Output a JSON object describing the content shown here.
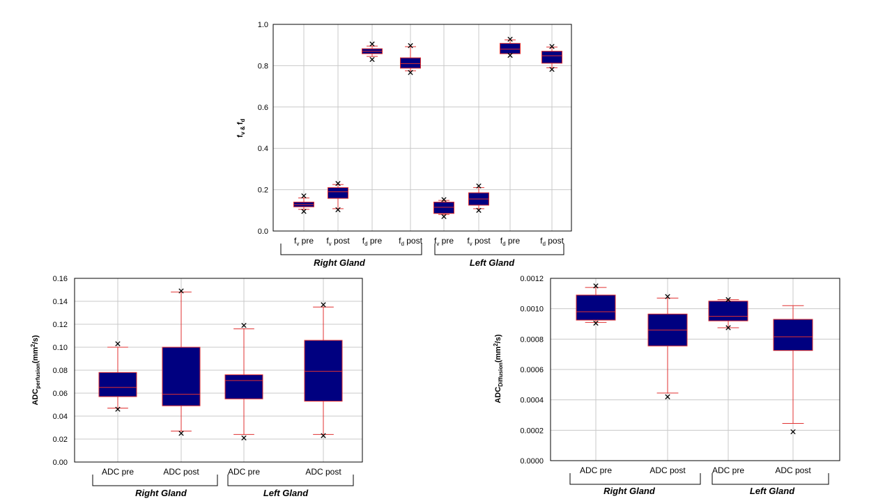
{
  "colors": {
    "box_fill": "#000080",
    "box_edge": "#e03030",
    "whisker": "#e03030",
    "grid": "#c8c8c8",
    "outlier": "#000000"
  },
  "chart_data": [
    {
      "type": "box",
      "ylabel": {
        "main": "f",
        "sub1": "v & ",
        "main2": "f",
        "sub2": "d"
      },
      "ylim": [
        0,
        1
      ],
      "ticks": [
        "0.0",
        "0.2",
        "0.4",
        "0.6",
        "0.8",
        "1.0"
      ],
      "categories": [
        {
          "label": "f",
          "sub": "v",
          "suffix": " pre"
        },
        {
          "label": "f",
          "sub": "v",
          "suffix": " post"
        },
        {
          "label": "f",
          "sub": "d",
          "suffix": " pre"
        },
        {
          "label": "f",
          "sub": "d",
          "suffix": " post"
        },
        {
          "label": "f",
          "sub": "v",
          "suffix": " pre"
        },
        {
          "label": "f",
          "sub": "v",
          "suffix": " post"
        },
        {
          "label": "f",
          "sub": "d",
          "suffix": " pre"
        },
        {
          "label": "f",
          "sub": "d",
          "suffix": " post"
        }
      ],
      "boxes": [
        {
          "wlo": 0.105,
          "q1": 0.117,
          "median": 0.128,
          "q3": 0.14,
          "whi": 0.16,
          "outliers": [
            0.17,
            0.095
          ]
        },
        {
          "wlo": 0.108,
          "q1": 0.158,
          "median": 0.19,
          "q3": 0.21,
          "whi": 0.225,
          "outliers": [
            0.23,
            0.103
          ]
        },
        {
          "wlo": 0.845,
          "q1": 0.858,
          "median": 0.87,
          "q3": 0.882,
          "whi": 0.895,
          "outliers": [
            0.905,
            0.83
          ]
        },
        {
          "wlo": 0.775,
          "q1": 0.788,
          "median": 0.81,
          "q3": 0.838,
          "whi": 0.892,
          "outliers": [
            0.897,
            0.767
          ]
        },
        {
          "wlo": 0.08,
          "q1": 0.085,
          "median": 0.115,
          "q3": 0.14,
          "whi": 0.148,
          "outliers": [
            0.152,
            0.07
          ]
        },
        {
          "wlo": 0.108,
          "q1": 0.125,
          "median": 0.155,
          "q3": 0.185,
          "whi": 0.21,
          "outliers": [
            0.218,
            0.1
          ]
        },
        {
          "wlo": 0.86,
          "q1": 0.858,
          "median": 0.88,
          "q3": 0.908,
          "whi": 0.925,
          "outliers": [
            0.928,
            0.85
          ]
        },
        {
          "wlo": 0.79,
          "q1": 0.812,
          "median": 0.848,
          "q3": 0.87,
          "whi": 0.89,
          "outliers": [
            0.893,
            0.782
          ]
        }
      ],
      "groups": [
        "Right Gland",
        "Left Gland"
      ]
    },
    {
      "type": "box",
      "ylabel": {
        "main": "ADC",
        "sub1": "perfusion",
        "main2": "(mm",
        "sup": "2",
        "main3": "/s)"
      },
      "ylim": [
        0,
        0.16
      ],
      "ticks": [
        "0.00",
        "0.02",
        "0.04",
        "0.06",
        "0.08",
        "0.10",
        "0.12",
        "0.14",
        "0.16"
      ],
      "categories": [
        {
          "label": "ADC pre"
        },
        {
          "label": "ADC post"
        },
        {
          "label": "ADC pre"
        },
        {
          "label": "ADC post"
        }
      ],
      "boxes": [
        {
          "wlo": 0.047,
          "q1": 0.057,
          "median": 0.065,
          "q3": 0.078,
          "whi": 0.1,
          "outliers": [
            0.103,
            0.046
          ]
        },
        {
          "wlo": 0.027,
          "q1": 0.049,
          "median": 0.059,
          "q3": 0.1,
          "whi": 0.148,
          "outliers": [
            0.149,
            0.025
          ]
        },
        {
          "wlo": 0.024,
          "q1": 0.055,
          "median": 0.071,
          "q3": 0.076,
          "whi": 0.116,
          "outliers": [
            0.119,
            0.021
          ]
        },
        {
          "wlo": 0.024,
          "q1": 0.053,
          "median": 0.079,
          "q3": 0.106,
          "whi": 0.135,
          "outliers": [
            0.137,
            0.023
          ]
        }
      ],
      "groups": [
        "Right Gland",
        "Left Gland"
      ]
    },
    {
      "type": "box",
      "ylabel": {
        "main": "ADC",
        "sub1": "Diffusion",
        "main2": "(mm",
        "sup": "2",
        "main3": "/s)"
      },
      "ylim": [
        0,
        0.0012
      ],
      "ticks": [
        "0.0000",
        "0.0002",
        "0.0004",
        "0.0006",
        "0.0008",
        "0.0010",
        "0.0012"
      ],
      "categories": [
        {
          "label": "ADC pre"
        },
        {
          "label": "ADC post"
        },
        {
          "label": "ADC pre"
        },
        {
          "label": "ADC post"
        }
      ],
      "boxes": [
        {
          "wlo": 0.00091,
          "q1": 0.000925,
          "median": 0.00098,
          "q3": 0.00109,
          "whi": 0.00114,
          "outliers": [
            0.00115,
            0.000905
          ]
        },
        {
          "wlo": 0.000445,
          "q1": 0.000755,
          "median": 0.00086,
          "q3": 0.000965,
          "whi": 0.00107,
          "outliers": [
            0.00108,
            0.00042
          ]
        },
        {
          "wlo": 0.000875,
          "q1": 0.00092,
          "median": 0.00095,
          "q3": 0.00105,
          "whi": 0.00106,
          "outliers": [
            0.00106,
            0.000875
          ]
        },
        {
          "wlo": 0.000245,
          "q1": 0.000725,
          "median": 0.000815,
          "q3": 0.00093,
          "whi": 0.00102,
          "outliers": [
            0.00019
          ]
        }
      ],
      "groups": [
        "Right Gland",
        "Left Gland"
      ]
    }
  ]
}
